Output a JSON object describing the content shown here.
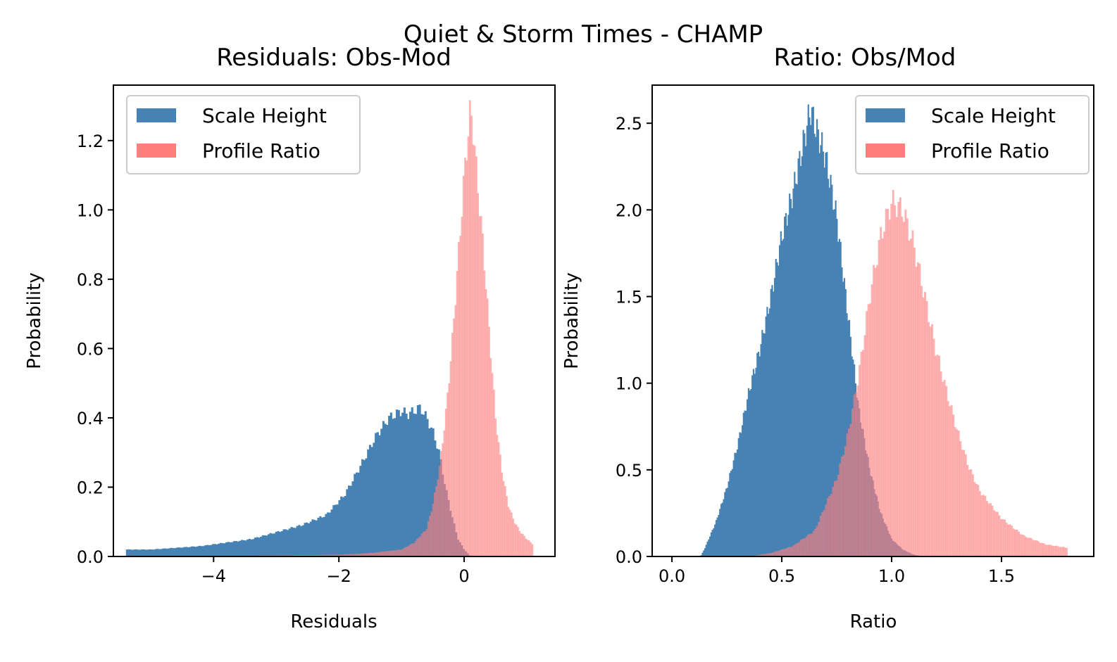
{
  "figure": {
    "suptitle": "Quiet & Storm Times - CHAMP"
  },
  "colors": {
    "scale_height": "#4682b4",
    "profile_ratio": "#ff7f7f",
    "overlap": "#a23f53"
  },
  "chart_data": [
    {
      "type": "bar",
      "histogram": true,
      "title": "Residuals: Obs-Mod",
      "xlabel": "Residuals",
      "ylabel": "Probability",
      "xlim": [
        -5.6,
        1.45
      ],
      "ylim": [
        0,
        1.36
      ],
      "xticks": [
        -4,
        -2,
        0
      ],
      "xtick_labels": [
        "−4",
        "−2",
        "0"
      ],
      "yticks": [
        0,
        0.2,
        0.4,
        0.6,
        0.8,
        1.0,
        1.2
      ],
      "ytick_labels": [
        "0.0",
        "0.2",
        "0.4",
        "0.6",
        "0.8",
        "1.0",
        "1.2"
      ],
      "legend_position": "upper-left",
      "series": [
        {
          "name": "Scale Height",
          "color": "#4682b4",
          "bins": [
            [
              -5.4,
              0.02
            ],
            [
              -5.0,
              0.02
            ],
            [
              -4.6,
              0.025
            ],
            [
              -4.2,
              0.03
            ],
            [
              -3.8,
              0.04
            ],
            [
              -3.4,
              0.05
            ],
            [
              -3.0,
              0.07
            ],
            [
              -2.6,
              0.09
            ],
            [
              -2.2,
              0.12
            ],
            [
              -1.9,
              0.18
            ],
            [
              -1.6,
              0.28
            ],
            [
              -1.4,
              0.35
            ],
            [
              -1.2,
              0.4
            ],
            [
              -1.0,
              0.42
            ],
            [
              -0.9,
              0.41
            ],
            [
              -0.8,
              0.42
            ],
            [
              -0.7,
              0.43
            ],
            [
              -0.6,
              0.4
            ],
            [
              -0.5,
              0.36
            ],
            [
              -0.4,
              0.3
            ],
            [
              -0.3,
              0.2
            ],
            [
              -0.2,
              0.12
            ],
            [
              -0.1,
              0.05
            ],
            [
              0.0,
              0.02
            ],
            [
              0.1,
              0.0
            ]
          ]
        },
        {
          "name": "Profile Ratio",
          "color": "#ff7f7f",
          "alpha": 0.6,
          "bins": [
            [
              -3.5,
              0.002
            ],
            [
              -2.0,
              0.005
            ],
            [
              -1.5,
              0.01
            ],
            [
              -1.0,
              0.02
            ],
            [
              -0.8,
              0.04
            ],
            [
              -0.6,
              0.08
            ],
            [
              -0.5,
              0.15
            ],
            [
              -0.4,
              0.25
            ],
            [
              -0.3,
              0.4
            ],
            [
              -0.2,
              0.6
            ],
            [
              -0.1,
              0.85
            ],
            [
              0.0,
              1.1
            ],
            [
              0.05,
              1.2
            ],
            [
              0.1,
              1.29
            ],
            [
              0.15,
              1.22
            ],
            [
              0.2,
              1.1
            ],
            [
              0.3,
              0.9
            ],
            [
              0.4,
              0.65
            ],
            [
              0.5,
              0.4
            ],
            [
              0.6,
              0.25
            ],
            [
              0.7,
              0.15
            ],
            [
              0.8,
              0.1
            ],
            [
              0.9,
              0.07
            ],
            [
              1.0,
              0.05
            ],
            [
              1.1,
              0.035
            ]
          ]
        }
      ]
    },
    {
      "type": "bar",
      "histogram": true,
      "title": "Ratio: Obs/Mod",
      "xlabel": "Ratio",
      "ylabel": "Probability",
      "xlim": [
        -0.09,
        1.92
      ],
      "ylim": [
        0,
        2.72
      ],
      "xticks": [
        0.0,
        0.5,
        1.0,
        1.5
      ],
      "xtick_labels": [
        "0.0",
        "0.5",
        "1.0",
        "1.5"
      ],
      "yticks": [
        0,
        0.5,
        1.0,
        1.5,
        2.0,
        2.5
      ],
      "ytick_labels": [
        "0.0",
        "0.5",
        "1.0",
        "1.5",
        "2.0",
        "2.5"
      ],
      "legend_position": "upper-right",
      "series": [
        {
          "name": "Scale Height",
          "color": "#4682b4",
          "bins": [
            [
              0.13,
              0.0
            ],
            [
              0.15,
              0.05
            ],
            [
              0.2,
              0.2
            ],
            [
              0.25,
              0.4
            ],
            [
              0.3,
              0.65
            ],
            [
              0.35,
              0.95
            ],
            [
              0.4,
              1.2
            ],
            [
              0.45,
              1.5
            ],
            [
              0.5,
              1.85
            ],
            [
              0.55,
              2.1
            ],
            [
              0.6,
              2.4
            ],
            [
              0.63,
              2.58
            ],
            [
              0.66,
              2.45
            ],
            [
              0.7,
              2.3
            ],
            [
              0.75,
              1.95
            ],
            [
              0.8,
              1.4
            ],
            [
              0.85,
              0.85
            ],
            [
              0.9,
              0.5
            ],
            [
              0.95,
              0.25
            ],
            [
              1.0,
              0.1
            ],
            [
              1.05,
              0.04
            ],
            [
              1.1,
              0.01
            ],
            [
              1.15,
              0.0
            ]
          ]
        },
        {
          "name": "Profile Ratio",
          "color": "#ff7f7f",
          "alpha": 0.6,
          "bins": [
            [
              0.35,
              0.0
            ],
            [
              0.45,
              0.02
            ],
            [
              0.55,
              0.06
            ],
            [
              0.65,
              0.15
            ],
            [
              0.7,
              0.3
            ],
            [
              0.75,
              0.45
            ],
            [
              0.8,
              0.7
            ],
            [
              0.85,
              1.05
            ],
            [
              0.9,
              1.5
            ],
            [
              0.95,
              1.85
            ],
            [
              1.0,
              2.05
            ],
            [
              1.05,
              2.0
            ],
            [
              1.1,
              1.8
            ],
            [
              1.15,
              1.5
            ],
            [
              1.2,
              1.2
            ],
            [
              1.25,
              0.95
            ],
            [
              1.3,
              0.72
            ],
            [
              1.35,
              0.52
            ],
            [
              1.4,
              0.38
            ],
            [
              1.5,
              0.22
            ],
            [
              1.6,
              0.12
            ],
            [
              1.7,
              0.07
            ],
            [
              1.8,
              0.05
            ]
          ]
        }
      ]
    }
  ]
}
